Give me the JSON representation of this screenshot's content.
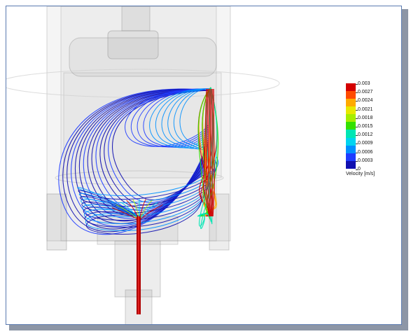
{
  "legend": {
    "ticks": [
      "0.003",
      "0.0027",
      "0.0024",
      "0.0021",
      "0.0018",
      "0.0015",
      "0.0012",
      "0.0009",
      "0.0006",
      "0.0003",
      "0"
    ],
    "title": "Velocity [m/s]",
    "colors": [
      "#d40000",
      "#ff4a00",
      "#ffaa00",
      "#e8e800",
      "#a6ee00",
      "#34e000",
      "#00e6b4",
      "#00d4f0",
      "#0090ff",
      "#1e3cff",
      "#1010b0"
    ]
  },
  "palette": {
    "background": "#ffffff",
    "frame_border": "#5a7ab0",
    "frame_shadow": "#8d96a6",
    "geometry": "#b8b8b8"
  }
}
